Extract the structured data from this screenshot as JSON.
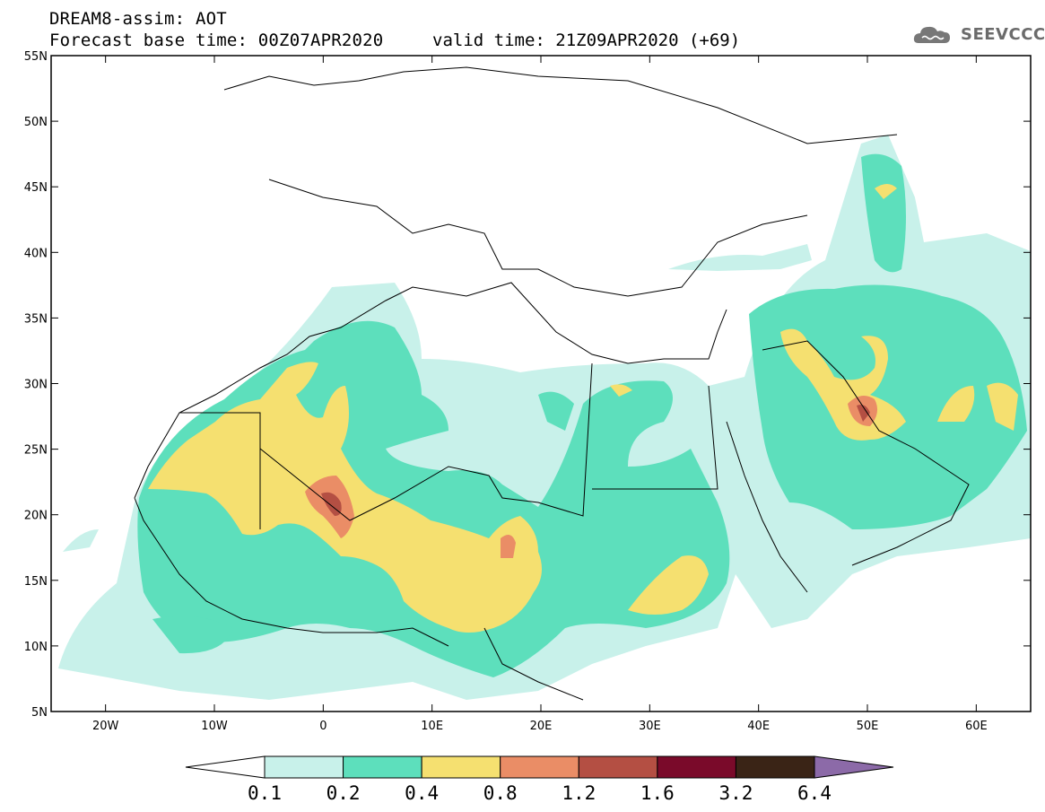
{
  "title": {
    "line1": "DREAM8-assim: AOT",
    "line2": "Forecast base time: 00Z07APR2020",
    "valid": "valid time: 21Z09APR2020 (+69)"
  },
  "logo": {
    "text": "SEEVCCC",
    "icon": "cloud-icon"
  },
  "map": {
    "lon_range": [
      -25,
      65
    ],
    "lat_range": [
      5,
      55
    ],
    "lon_ticks": [
      {
        "value": -20,
        "label": "20W"
      },
      {
        "value": -10,
        "label": "10W"
      },
      {
        "value": 0,
        "label": "0"
      },
      {
        "value": 10,
        "label": "10E"
      },
      {
        "value": 20,
        "label": "20E"
      },
      {
        "value": 30,
        "label": "30E"
      },
      {
        "value": 40,
        "label": "40E"
      },
      {
        "value": 50,
        "label": "50E"
      },
      {
        "value": 60,
        "label": "60E"
      }
    ],
    "lat_ticks": [
      {
        "value": 55,
        "label": "55N"
      },
      {
        "value": 50,
        "label": "50N"
      },
      {
        "value": 45,
        "label": "45N"
      },
      {
        "value": 40,
        "label": "40N"
      },
      {
        "value": 35,
        "label": "35N"
      },
      {
        "value": 30,
        "label": "30N"
      },
      {
        "value": 25,
        "label": "25N"
      },
      {
        "value": 20,
        "label": "20N"
      },
      {
        "value": 15,
        "label": "15N"
      },
      {
        "value": 10,
        "label": "10N"
      },
      {
        "value": 5,
        "label": "5N"
      }
    ]
  },
  "colorbar": {
    "colors": [
      "#ffffff",
      "#c8f1ea",
      "#5ddfbc",
      "#f5e070",
      "#ea8d66",
      "#b44f43",
      "#7a0a2a",
      "#3a2416",
      "#8c6aa8"
    ],
    "labels": [
      "0.1",
      "0.2",
      "0.4",
      "0.8",
      "1.2",
      "1.6",
      "3.2",
      "6.4"
    ]
  }
}
